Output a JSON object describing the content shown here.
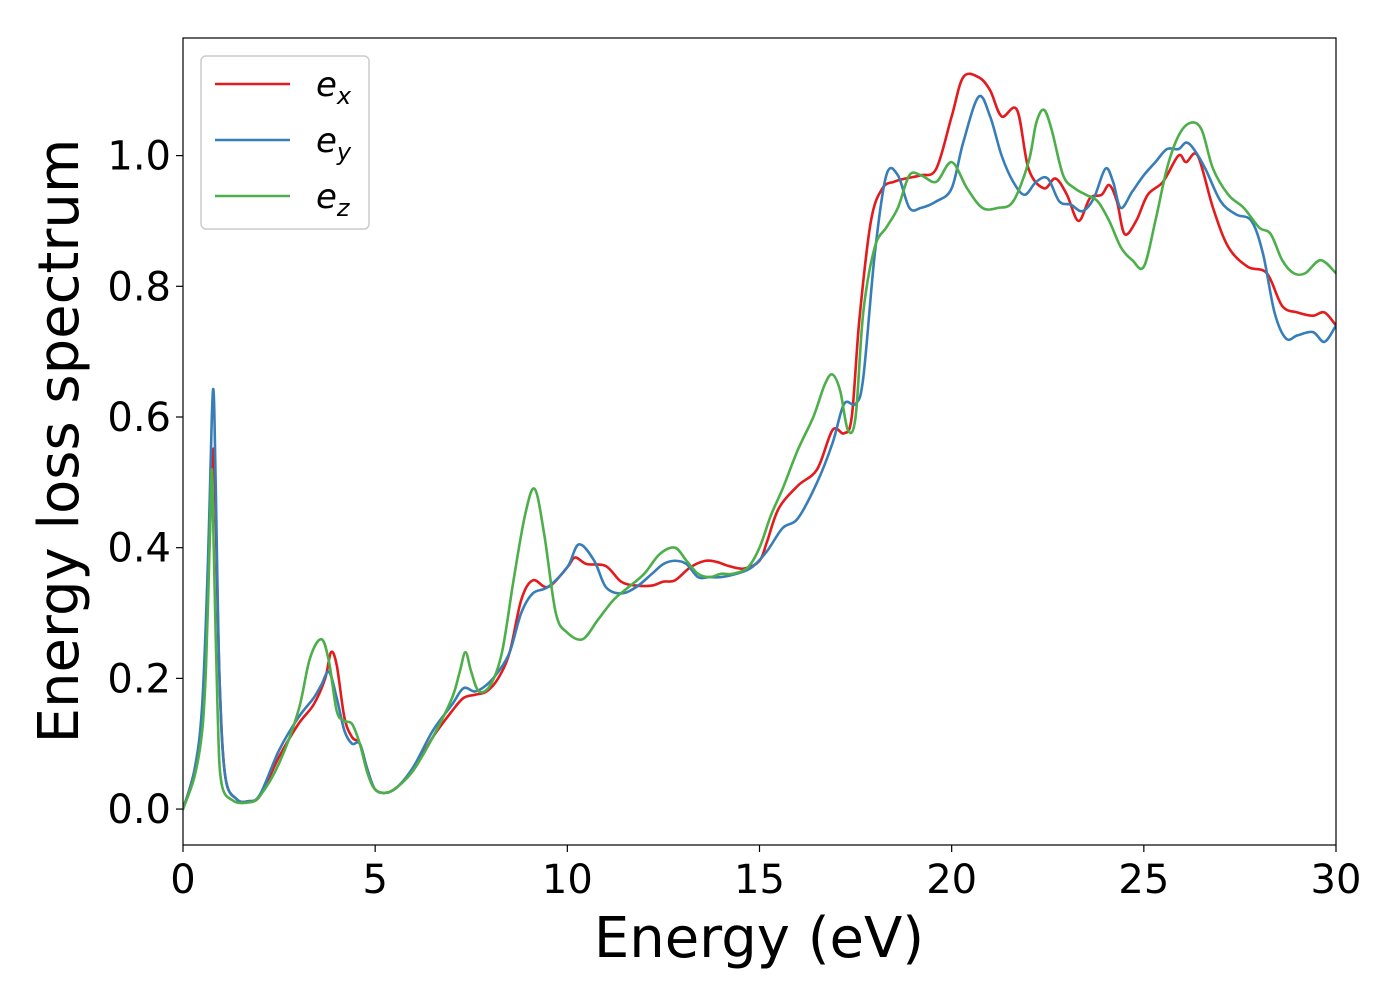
{
  "chart_data": {
    "type": "line",
    "xlabel": "Energy (eV)",
    "ylabel": "Energy loss spectrum",
    "xlim": [
      0,
      30
    ],
    "ylim": [
      -0.055,
      1.18
    ],
    "xticks": [
      0,
      5,
      10,
      15,
      20,
      25,
      30
    ],
    "xtick_labels": [
      "0",
      "5",
      "10",
      "15",
      "20",
      "25",
      "30"
    ],
    "yticks": [
      0.0,
      0.2,
      0.4,
      0.6,
      0.8,
      1.0
    ],
    "ytick_labels": [
      "0.0",
      "0.2",
      "0.4",
      "0.6",
      "0.8",
      "1.0"
    ],
    "grid": false,
    "legend_position": "top-left",
    "series": [
      {
        "name": "e",
        "subscript": "x",
        "color": "#e41a1c",
        "x": [
          0,
          0.3,
          0.5,
          0.65,
          0.75,
          0.8,
          0.85,
          0.95,
          1.1,
          1.4,
          1.7,
          2.0,
          2.5,
          3.0,
          3.4,
          3.7,
          3.85,
          4.0,
          4.2,
          4.4,
          4.6,
          4.8,
          5.0,
          5.3,
          5.6,
          6.0,
          6.5,
          7.0,
          7.3,
          7.6,
          7.9,
          8.2,
          8.5,
          8.8,
          9.1,
          9.5,
          10.0,
          10.2,
          10.5,
          11.0,
          11.4,
          11.8,
          12.2,
          12.5,
          12.8,
          13.2,
          13.6,
          13.9,
          14.2,
          14.6,
          15.0,
          15.2,
          15.5,
          16.0,
          16.5,
          16.9,
          17.2,
          17.4,
          17.6,
          17.9,
          18.2,
          18.5,
          18.8,
          19.2,
          19.6,
          20.0,
          20.3,
          20.7,
          21.0,
          21.3,
          21.7,
          22.0,
          22.4,
          22.7,
          23.0,
          23.3,
          23.6,
          23.9,
          24.1,
          24.3,
          24.5,
          24.8,
          25.1,
          25.5,
          25.9,
          26.1,
          26.4,
          26.8,
          27.2,
          27.7,
          28.2,
          28.6,
          29.0,
          29.4,
          29.7,
          30.0
        ],
        "y": [
          0.0,
          0.06,
          0.15,
          0.35,
          0.5,
          0.55,
          0.45,
          0.2,
          0.05,
          0.015,
          0.012,
          0.02,
          0.08,
          0.13,
          0.16,
          0.2,
          0.24,
          0.22,
          0.14,
          0.11,
          0.1,
          0.06,
          0.03,
          0.025,
          0.035,
          0.06,
          0.11,
          0.15,
          0.17,
          0.175,
          0.18,
          0.2,
          0.24,
          0.32,
          0.35,
          0.34,
          0.37,
          0.385,
          0.375,
          0.372,
          0.348,
          0.342,
          0.342,
          0.348,
          0.35,
          0.37,
          0.38,
          0.378,
          0.372,
          0.368,
          0.38,
          0.41,
          0.46,
          0.495,
          0.52,
          0.58,
          0.575,
          0.6,
          0.75,
          0.9,
          0.95,
          0.96,
          0.965,
          0.97,
          0.98,
          1.06,
          1.12,
          1.12,
          1.1,
          1.06,
          1.07,
          0.98,
          0.95,
          0.965,
          0.94,
          0.9,
          0.935,
          0.94,
          0.955,
          0.93,
          0.88,
          0.9,
          0.94,
          0.96,
          1.0,
          0.99,
          1.0,
          0.92,
          0.86,
          0.83,
          0.82,
          0.77,
          0.76,
          0.755,
          0.76,
          0.74
        ]
      },
      {
        "name": "e",
        "subscript": "y",
        "color": "#377eb8",
        "x": [
          0,
          0.3,
          0.5,
          0.65,
          0.75,
          0.8,
          0.85,
          0.95,
          1.1,
          1.4,
          1.7,
          2.0,
          2.5,
          3.0,
          3.4,
          3.6,
          3.8,
          4.0,
          4.2,
          4.4,
          4.6,
          4.8,
          5.0,
          5.3,
          5.6,
          6.0,
          6.5,
          7.0,
          7.3,
          7.6,
          7.9,
          8.2,
          8.5,
          8.8,
          9.1,
          9.5,
          10.0,
          10.3,
          10.7,
          11.0,
          11.4,
          11.8,
          12.2,
          12.5,
          12.8,
          13.1,
          13.4,
          13.7,
          14.0,
          14.4,
          14.8,
          15.2,
          15.6,
          16.0,
          16.5,
          16.9,
          17.2,
          17.5,
          17.7,
          18.0,
          18.3,
          18.6,
          18.9,
          19.2,
          19.6,
          20.0,
          20.3,
          20.7,
          21.0,
          21.3,
          21.6,
          21.9,
          22.2,
          22.5,
          22.8,
          23.1,
          23.4,
          23.7,
          24.0,
          24.2,
          24.4,
          24.7,
          25.0,
          25.3,
          25.6,
          25.9,
          26.1,
          26.3,
          26.6,
          27.0,
          27.4,
          27.8,
          28.1,
          28.4,
          28.7,
          29.0,
          29.4,
          29.7,
          30.0
        ],
        "y": [
          0.0,
          0.06,
          0.16,
          0.38,
          0.6,
          0.635,
          0.5,
          0.2,
          0.05,
          0.015,
          0.012,
          0.022,
          0.09,
          0.14,
          0.17,
          0.19,
          0.21,
          0.17,
          0.12,
          0.1,
          0.1,
          0.06,
          0.03,
          0.025,
          0.035,
          0.065,
          0.12,
          0.16,
          0.185,
          0.18,
          0.19,
          0.21,
          0.24,
          0.3,
          0.33,
          0.34,
          0.37,
          0.405,
          0.38,
          0.34,
          0.33,
          0.34,
          0.36,
          0.375,
          0.38,
          0.375,
          0.355,
          0.355,
          0.355,
          0.36,
          0.37,
          0.395,
          0.43,
          0.445,
          0.5,
          0.56,
          0.62,
          0.62,
          0.66,
          0.85,
          0.97,
          0.97,
          0.92,
          0.92,
          0.93,
          0.95,
          1.02,
          1.09,
          1.06,
          1.0,
          0.96,
          0.94,
          0.96,
          0.965,
          0.93,
          0.925,
          0.915,
          0.935,
          0.98,
          0.96,
          0.92,
          0.945,
          0.97,
          0.99,
          1.01,
          1.01,
          1.02,
          1.01,
          0.98,
          0.93,
          0.91,
          0.9,
          0.85,
          0.76,
          0.72,
          0.725,
          0.73,
          0.715,
          0.74
        ]
      },
      {
        "name": "e",
        "subscript": "z",
        "color": "#4daf4a",
        "x": [
          0,
          0.3,
          0.5,
          0.6,
          0.7,
          0.75,
          0.8,
          0.9,
          1.0,
          1.3,
          1.7,
          2.0,
          2.5,
          3.0,
          3.3,
          3.6,
          3.8,
          4.0,
          4.2,
          4.4,
          4.6,
          4.8,
          5.0,
          5.3,
          5.6,
          6.0,
          6.5,
          7.0,
          7.2,
          7.35,
          7.5,
          7.7,
          8.0,
          8.3,
          8.6,
          8.9,
          9.15,
          9.4,
          9.7,
          10.0,
          10.4,
          10.8,
          11.2,
          11.6,
          12.0,
          12.4,
          12.8,
          13.1,
          13.4,
          13.7,
          14.0,
          14.3,
          14.7,
          15.0,
          15.3,
          15.6,
          16.0,
          16.4,
          16.7,
          16.9,
          17.1,
          17.3,
          17.5,
          17.7,
          18.0,
          18.3,
          18.6,
          18.9,
          19.2,
          19.6,
          20.0,
          20.4,
          20.8,
          21.2,
          21.6,
          22.0,
          22.2,
          22.4,
          22.6,
          22.9,
          23.2,
          23.5,
          23.8,
          24.1,
          24.4,
          24.7,
          25.0,
          25.3,
          25.6,
          25.9,
          26.2,
          26.5,
          26.8,
          27.2,
          27.6,
          28.0,
          28.3,
          28.6,
          28.9,
          29.2,
          29.6,
          30.0
        ],
        "y": [
          0.0,
          0.05,
          0.12,
          0.22,
          0.42,
          0.52,
          0.4,
          0.15,
          0.04,
          0.013,
          0.01,
          0.02,
          0.07,
          0.15,
          0.23,
          0.26,
          0.225,
          0.15,
          0.135,
          0.13,
          0.1,
          0.055,
          0.03,
          0.025,
          0.035,
          0.06,
          0.11,
          0.17,
          0.21,
          0.24,
          0.21,
          0.18,
          0.19,
          0.24,
          0.35,
          0.45,
          0.49,
          0.42,
          0.3,
          0.27,
          0.26,
          0.29,
          0.32,
          0.34,
          0.36,
          0.39,
          0.4,
          0.38,
          0.36,
          0.355,
          0.36,
          0.36,
          0.37,
          0.4,
          0.45,
          0.49,
          0.55,
          0.6,
          0.65,
          0.665,
          0.64,
          0.58,
          0.6,
          0.76,
          0.86,
          0.89,
          0.92,
          0.97,
          0.97,
          0.96,
          0.99,
          0.95,
          0.92,
          0.92,
          0.93,
          0.99,
          1.05,
          1.07,
          1.04,
          0.97,
          0.95,
          0.94,
          0.93,
          0.9,
          0.86,
          0.84,
          0.83,
          0.9,
          0.98,
          1.03,
          1.05,
          1.04,
          0.98,
          0.94,
          0.92,
          0.89,
          0.88,
          0.84,
          0.82,
          0.82,
          0.84,
          0.82
        ]
      }
    ]
  }
}
